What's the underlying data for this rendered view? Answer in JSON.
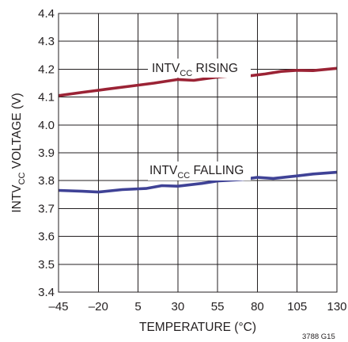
{
  "chart_data": {
    "type": "line",
    "title": "",
    "xlabel": "TEMPERATURE (°C)",
    "ylabel": {
      "main": "INTV",
      "sub": "CC",
      "rest": " VOLTAGE (V)"
    },
    "xlim": [
      -45,
      130
    ],
    "ylim": [
      3.4,
      4.4
    ],
    "x_ticks": [
      "–45",
      "–20",
      "5",
      "30",
      "55",
      "80",
      "105",
      "130"
    ],
    "y_ticks": [
      "3.4",
      "3.5",
      "3.6",
      "3.7",
      "3.8",
      "3.9",
      "4.0",
      "4.1",
      "4.2",
      "4.3",
      "4.4"
    ],
    "grid": true,
    "series": [
      {
        "name": "INTVCC RISING",
        "label_main": "INTV",
        "label_sub": "CC",
        "label_rest": " RISING",
        "color": "#9b2335",
        "x": [
          -45,
          -30,
          -15,
          0,
          15,
          30,
          40,
          55,
          65,
          75,
          85,
          95,
          105,
          115,
          130
        ],
        "y": [
          4.105,
          4.117,
          4.128,
          4.139,
          4.15,
          4.163,
          4.16,
          4.172,
          4.177,
          4.176,
          4.183,
          4.192,
          4.196,
          4.195,
          4.203
        ]
      },
      {
        "name": "INTVCC FALLING",
        "label_main": "INTV",
        "label_sub": "CC",
        "label_rest": " FALLING",
        "color": "#3f4296",
        "x": [
          -45,
          -30,
          -20,
          -5,
          10,
          20,
          30,
          45,
          55,
          70,
          80,
          90,
          105,
          115,
          130
        ],
        "y": [
          3.765,
          3.762,
          3.759,
          3.768,
          3.772,
          3.782,
          3.78,
          3.79,
          3.799,
          3.804,
          3.812,
          3.808,
          3.817,
          3.824,
          3.83
        ]
      }
    ]
  },
  "figure_id": "3788 G15"
}
